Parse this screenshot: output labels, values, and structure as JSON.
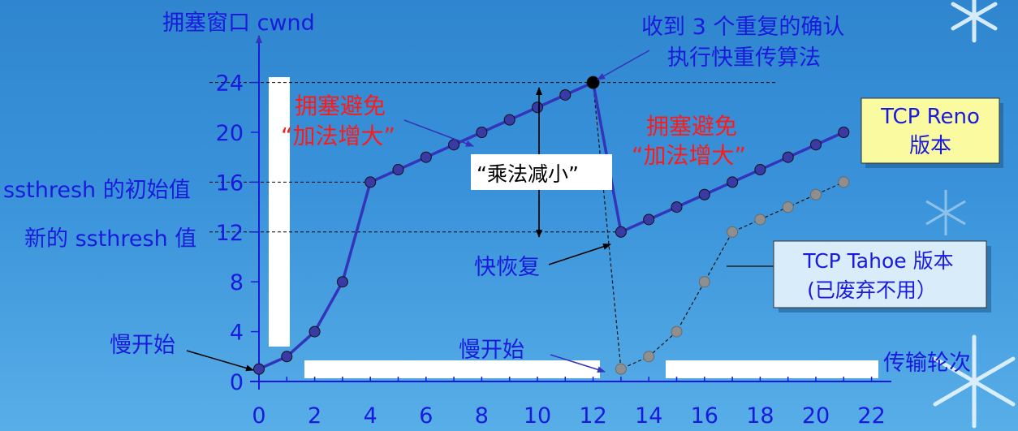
{
  "title": "拥塞窗口 cwnd",
  "x_axis_label": "传输轮次",
  "labels": {
    "ssthresh_initial": "ssthresh 的初始值",
    "ssthresh_new": "新的 ssthresh 值",
    "slow_start": "慢开始",
    "slow_start_2": "慢开始",
    "ca_line1": "拥塞避免",
    "ca_line2": "“加法增大”",
    "ca2_line1": "拥塞避免",
    "ca2_line2": "“加法增大”",
    "mult_decrease": "“乘法减小”",
    "fast_recovery": "快恢复",
    "dup_ack_line1": "收到 3 个重复的确认",
    "dup_ack_line2": "执行快重传算法",
    "reno_line1": "TCP Reno",
    "reno_line2": "版本",
    "tahoe_line1": "TCP Tahoe 版本",
    "tahoe_line2": "(已废弃不用）"
  },
  "colors": {
    "axis_text": "#1a1adc",
    "line": "#3333bb",
    "dot": "#3a3aa6",
    "gray": "#8f8f8f",
    "red": "#ff1a1a",
    "reno_box": "#fafaa0",
    "tahoe_box": "#d8ecfa"
  },
  "chart_data": {
    "type": "line",
    "xlabel": "传输轮次",
    "ylabel": "拥塞窗口 cwnd",
    "x_ticks": [
      0,
      2,
      4,
      6,
      8,
      10,
      12,
      14,
      16,
      18,
      20,
      22
    ],
    "y_ticks": [
      0,
      4,
      8,
      12,
      16,
      20,
      24
    ],
    "xlim": [
      0,
      22
    ],
    "ylim": [
      0,
      24
    ],
    "reference_lines": [
      24,
      16,
      12
    ],
    "series": [
      {
        "name": "TCP Reno 版本",
        "x": [
          0,
          1,
          2,
          3,
          4,
          5,
          6,
          7,
          8,
          9,
          10,
          11,
          12,
          13,
          14,
          15,
          16,
          17,
          18,
          19,
          20,
          21
        ],
        "y": [
          1,
          2,
          4,
          8,
          16,
          17,
          18,
          19,
          20,
          21,
          22,
          23,
          24,
          12,
          13,
          14,
          15,
          16,
          17,
          18,
          19,
          20
        ]
      },
      {
        "name": "TCP Tahoe 版本",
        "x": [
          12,
          13,
          14,
          15,
          16,
          17,
          18,
          19,
          20,
          21
        ],
        "y": [
          24,
          1,
          2,
          4,
          8,
          12,
          13,
          14,
          15,
          16
        ]
      }
    ]
  }
}
